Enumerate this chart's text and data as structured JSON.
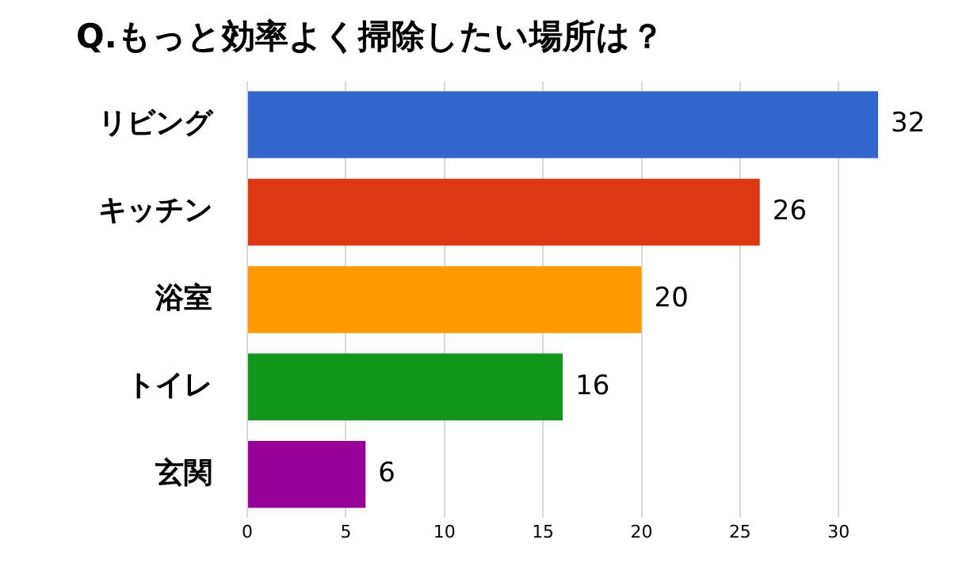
{
  "chart_data": {
    "type": "bar",
    "orientation": "horizontal",
    "title": "Q.もっと効率よく掃除したい場所は？",
    "categories": [
      "リビング",
      "キッチン",
      "浴室",
      "トイレ",
      "玄関"
    ],
    "values": [
      32,
      26,
      20,
      16,
      6
    ],
    "colors": [
      "#3366cc",
      "#dc3912",
      "#ff9900",
      "#109618",
      "#990099"
    ],
    "xlim": [
      0,
      32
    ],
    "xticks": [
      0,
      5,
      10,
      15,
      20,
      25,
      30
    ],
    "grid": "x",
    "data_labels": true,
    "legend": false
  }
}
